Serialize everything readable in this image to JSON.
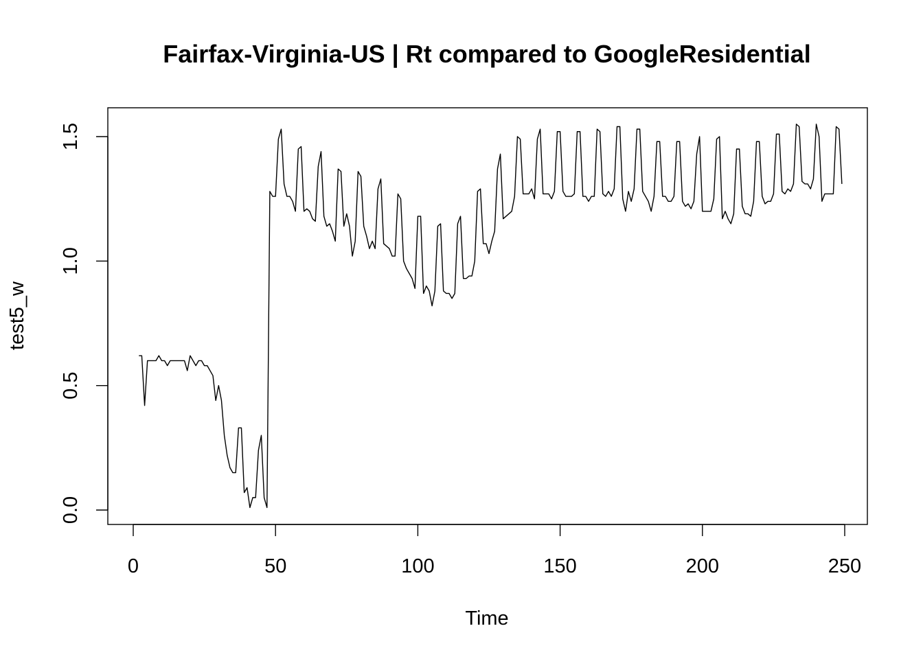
{
  "chart_data": {
    "type": "line",
    "title": "Fairfax-Virginia-US | Rt compared to GoogleResidential",
    "xlabel": "Time",
    "ylabel": "test5_w",
    "xlim": [
      0,
      250
    ],
    "ylim": [
      0.0,
      1.55
    ],
    "x_ticks": [
      0,
      50,
      100,
      150,
      200,
      250
    ],
    "x_tick_labels": [
      "0",
      "50",
      "100",
      "150",
      "200",
      "250"
    ],
    "y_ticks": [
      0.0,
      0.5,
      1.0,
      1.5
    ],
    "y_tick_labels": [
      "0.0",
      "0.5",
      "1.0",
      "1.5"
    ],
    "grid": false,
    "line_color": "#000000",
    "series": [
      {
        "x_start": 2,
        "x_step": 1,
        "values": [
          0.62,
          0.62,
          0.42,
          0.6,
          0.6,
          0.6,
          0.6,
          0.62,
          0.6,
          0.6,
          0.58,
          0.6,
          0.6,
          0.6,
          0.6,
          0.6,
          0.6,
          0.56,
          0.62,
          0.6,
          0.58,
          0.6,
          0.6,
          0.58,
          0.58,
          0.56,
          0.54,
          0.44,
          0.5,
          0.44,
          0.3,
          0.22,
          0.17,
          0.15,
          0.15,
          0.33,
          0.33,
          0.07,
          0.09,
          0.01,
          0.05,
          0.05,
          0.24,
          0.3,
          0.05,
          0.01,
          1.28,
          1.26,
          1.26,
          1.49,
          1.53,
          1.31,
          1.26,
          1.26,
          1.24,
          1.2,
          1.45,
          1.46,
          1.2,
          1.21,
          1.2,
          1.17,
          1.16,
          1.38,
          1.44,
          1.18,
          1.14,
          1.15,
          1.12,
          1.08,
          1.37,
          1.36,
          1.14,
          1.19,
          1.14,
          1.02,
          1.08,
          1.36,
          1.34,
          1.14,
          1.1,
          1.05,
          1.08,
          1.05,
          1.29,
          1.33,
          1.07,
          1.06,
          1.05,
          1.02,
          1.02,
          1.27,
          1.25,
          1.0,
          0.97,
          0.95,
          0.93,
          0.89,
          1.18,
          1.18,
          0.87,
          0.9,
          0.88,
          0.82,
          0.88,
          1.14,
          1.15,
          0.88,
          0.87,
          0.87,
          0.85,
          0.87,
          1.15,
          1.18,
          0.93,
          0.93,
          0.94,
          0.94,
          1.0,
          1.28,
          1.29,
          1.07,
          1.07,
          1.03,
          1.08,
          1.12,
          1.37,
          1.43,
          1.17,
          1.18,
          1.19,
          1.2,
          1.26,
          1.5,
          1.49,
          1.27,
          1.27,
          1.27,
          1.29,
          1.25,
          1.49,
          1.53,
          1.27,
          1.27,
          1.27,
          1.25,
          1.28,
          1.52,
          1.52,
          1.28,
          1.26,
          1.26,
          1.26,
          1.27,
          1.52,
          1.52,
          1.26,
          1.26,
          1.24,
          1.26,
          1.26,
          1.53,
          1.52,
          1.27,
          1.26,
          1.28,
          1.26,
          1.29,
          1.54,
          1.54,
          1.25,
          1.2,
          1.28,
          1.24,
          1.29,
          1.53,
          1.53,
          1.28,
          1.26,
          1.24,
          1.2,
          1.26,
          1.48,
          1.48,
          1.26,
          1.26,
          1.24,
          1.24,
          1.26,
          1.48,
          1.48,
          1.24,
          1.22,
          1.23,
          1.21,
          1.24,
          1.43,
          1.5,
          1.2,
          1.2,
          1.2,
          1.2,
          1.25,
          1.49,
          1.5,
          1.17,
          1.2,
          1.17,
          1.15,
          1.19,
          1.45,
          1.45,
          1.22,
          1.19,
          1.19,
          1.18,
          1.24,
          1.48,
          1.48,
          1.26,
          1.23,
          1.24,
          1.24,
          1.27,
          1.51,
          1.51,
          1.28,
          1.27,
          1.29,
          1.28,
          1.31,
          1.55,
          1.54,
          1.32,
          1.31,
          1.31,
          1.29,
          1.33,
          1.55,
          1.5,
          1.24,
          1.27,
          1.27,
          1.27,
          1.27,
          1.54,
          1.53,
          1.31
        ]
      }
    ]
  }
}
